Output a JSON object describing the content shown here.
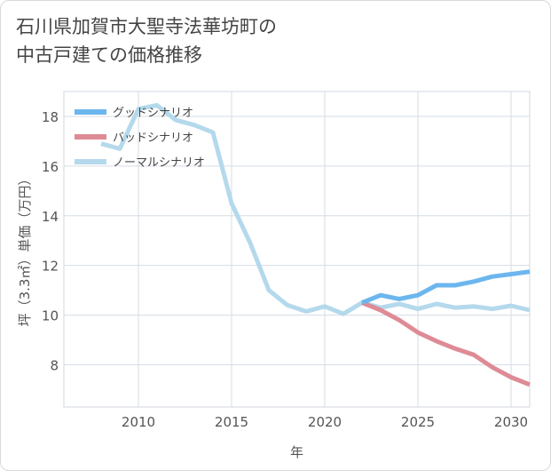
{
  "title_lines": [
    "石川県加賀市大聖寺法華坊町の",
    "中古戸建ての価格推移"
  ],
  "chart_data": {
    "type": "line",
    "title": "石川県加賀市大聖寺法華坊町の中古戸建ての価格推移",
    "xlabel": "年",
    "ylabel": "坪（3.3㎡）単価（万円）",
    "xlim": [
      2006,
      2031
    ],
    "ylim": [
      6.3,
      19.0
    ],
    "xticks": [
      2010,
      2015,
      2020,
      2025,
      2030
    ],
    "yticks": [
      8,
      10,
      12,
      14,
      16,
      18
    ],
    "grid": true,
    "legend_position": "top-left",
    "series": [
      {
        "name": "グッドシナリオ",
        "color": "#6cb6ee",
        "x": [
          2022,
          2023,
          2024,
          2025,
          2026,
          2027,
          2028,
          2029,
          2030,
          2031
        ],
        "y": [
          10.5,
          10.8,
          10.65,
          10.8,
          11.2,
          11.2,
          11.35,
          11.55,
          11.65,
          11.75
        ]
      },
      {
        "name": "バッドシナリオ",
        "color": "#de8b95",
        "x": [
          2022,
          2023,
          2024,
          2025,
          2026,
          2027,
          2028,
          2029,
          2030,
          2031
        ],
        "y": [
          10.5,
          10.2,
          9.8,
          9.3,
          8.95,
          8.65,
          8.4,
          7.9,
          7.5,
          7.2
        ]
      },
      {
        "name": "ノーマルシナリオ",
        "color": "#b5d9ec",
        "x": [
          2008,
          2009,
          2010,
          2011,
          2012,
          2013,
          2014,
          2015,
          2016,
          2017,
          2018,
          2019,
          2020,
          2021,
          2022,
          2023,
          2024,
          2025,
          2026,
          2027,
          2028,
          2029,
          2030,
          2031
        ],
        "y": [
          16.9,
          16.7,
          18.3,
          18.45,
          17.85,
          17.65,
          17.35,
          14.5,
          12.9,
          11.0,
          10.4,
          10.15,
          10.35,
          10.05,
          10.5,
          10.3,
          10.45,
          10.25,
          10.45,
          10.3,
          10.35,
          10.25,
          10.38,
          10.2
        ]
      }
    ]
  }
}
